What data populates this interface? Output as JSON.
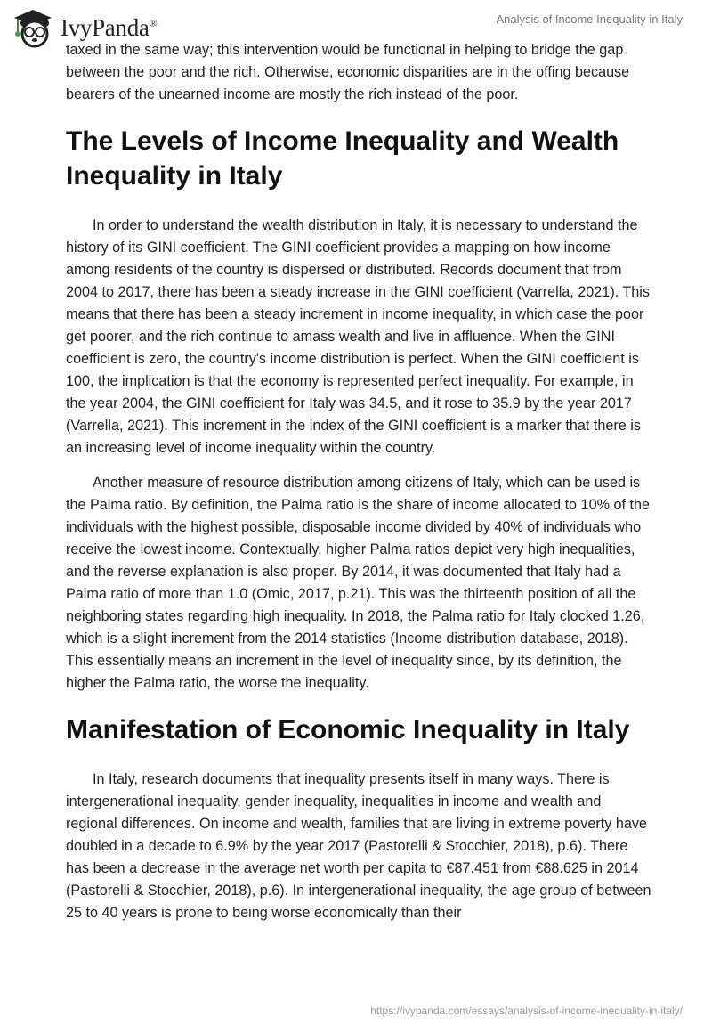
{
  "header": {
    "logo_text": "IvyPanda",
    "logo_mark": "®",
    "doc_title": "Analysis of Income Inequality in Italy"
  },
  "content": {
    "intro_paragraph": "taxed in the same way; this intervention would be functional in helping to bridge the gap between the poor and the rich. Otherwise, economic disparities are in the offing because bearers of the unearned income are mostly the rich instead of the poor.",
    "section1": {
      "heading": "The Levels of Income Inequality and Wealth Inequality in Italy",
      "paragraphs": [
        "In order to understand the wealth distribution in Italy, it is necessary to understand the history of its GINI coefficient. The GINI coefficient provides a mapping on how income among residents of the country is dispersed or distributed. Records document that from 2004 to 2017, there has been a steady increase in the GINI coefficient (Varrella, 2021). This means that there has been a steady increment in income inequality, in which case the poor get poorer, and the rich continue to amass wealth and live in affluence. When the GINI coefficient is zero, the country's income distribution is perfect. When the GINI coefficient is 100, the implication is that the economy is represented perfect inequality. For example, in the year 2004, the GINI coefficient for Italy was 34.5, and it rose to 35.9 by the year 2017 (Varrella, 2021). This increment in the index of the GINI coefficient is a marker that there is an increasing level of income inequality within the country.",
        "Another measure of resource distribution among citizens of Italy, which can be used is the Palma ratio. By definition, the Palma ratio is the share of income allocated to 10% of the individuals with the highest possible, disposable income divided by 40% of individuals who receive the lowest income. Contextually, higher Palma ratios depict very high inequalities, and the reverse explanation is also proper. By 2014, it was documented that Italy had a Palma ratio of more than 1.0 (Omic, 2017, p.21). This was the thirteenth position of all the neighboring states regarding high inequality. In 2018, the Palma ratio for Italy clocked 1.26, which is a slight increment from the 2014 statistics (Income distribution database, 2018). This essentially means an increment in the level of inequality since, by its definition, the higher the Palma ratio, the worse the inequality."
      ]
    },
    "section2": {
      "heading": "Manifestation of Economic Inequality in Italy",
      "paragraphs": [
        "In Italy, research documents that inequality presents itself in many ways. There is intergenerational inequality, gender inequality, inequalities in income and wealth and regional differences. On income and wealth, families that are living in extreme poverty have doubled in a decade to 6.9% by the year 2017 (Pastorelli & Stocchier, 2018), p.6). There has been a decrease in the average net worth per capita to €87.451 from €88.625 in 2014 (Pastorelli & Stocchier, 2018), p.6). In intergenerational inequality, the age group of between 25 to 40 years is prone to being worse economically than their"
      ]
    }
  },
  "footer": {
    "url": "https://ivypanda.com/essays/analysis-of-income-inequality-in-italy/"
  }
}
